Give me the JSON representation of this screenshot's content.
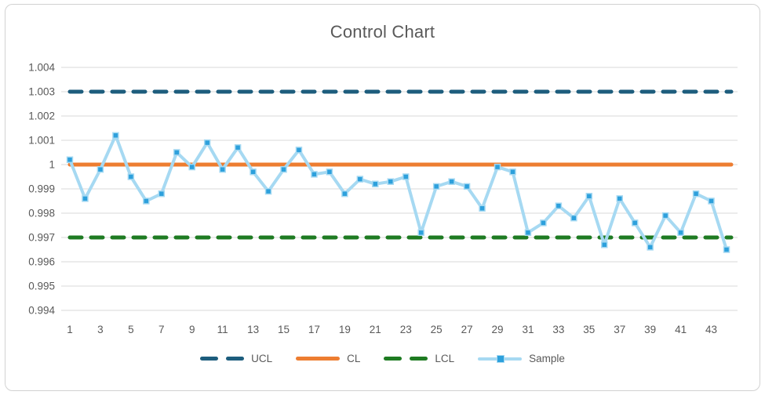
{
  "title": "Control Chart",
  "chart_data": {
    "type": "line",
    "title": "Control Chart",
    "grid": true,
    "legend_position": "bottom",
    "ylim": [
      0.994,
      1.004
    ],
    "ytick_step": 0.001,
    "ytick_labels": [
      "1.004",
      "1.003",
      "1.002",
      "1.001",
      "1",
      "0.999",
      "0.998",
      "0.997",
      "0.996",
      "0.995",
      "0.994"
    ],
    "ytick_values": [
      1.004,
      1.003,
      1.002,
      1.001,
      1.0,
      0.999,
      0.998,
      0.997,
      0.996,
      0.995,
      0.994
    ],
    "xtick_labels": [
      "1",
      "3",
      "5",
      "7",
      "9",
      "11",
      "13",
      "15",
      "17",
      "19",
      "21",
      "23",
      "25",
      "27",
      "29",
      "31",
      "33",
      "35",
      "37",
      "39",
      "41",
      "43"
    ],
    "x": [
      1,
      2,
      3,
      4,
      5,
      6,
      7,
      8,
      9,
      10,
      11,
      12,
      13,
      14,
      15,
      16,
      17,
      18,
      19,
      20,
      21,
      22,
      23,
      24,
      25,
      26,
      27,
      28,
      29,
      30,
      31,
      32,
      33,
      34,
      35,
      36,
      37,
      38,
      39,
      40,
      41,
      42,
      43,
      44
    ],
    "series": [
      {
        "name": "UCL",
        "kind": "hline",
        "value": 1.003,
        "color": "#1d5d7d",
        "dash": "dashed"
      },
      {
        "name": "CL",
        "kind": "hline",
        "value": 1.0,
        "color": "#ed7d31",
        "dash": "solid"
      },
      {
        "name": "LCL",
        "kind": "hline",
        "value": 0.997,
        "color": "#1e7b22",
        "dash": "dashed"
      },
      {
        "name": "Sample",
        "kind": "line-markers",
        "line_color": "#a6d9f2",
        "marker_color": "#2da0dc",
        "values": [
          1.0002,
          0.9986,
          0.9998,
          1.0012,
          0.9995,
          0.9985,
          0.9988,
          1.0005,
          0.9999,
          1.0009,
          0.9998,
          1.0007,
          0.9997,
          0.9989,
          0.9998,
          1.0006,
          0.9996,
          0.9997,
          0.9988,
          0.9994,
          0.9992,
          0.9993,
          0.9995,
          0.9972,
          0.9991,
          0.9993,
          0.9991,
          0.9982,
          0.9999,
          0.9997,
          0.9972,
          0.9976,
          0.9983,
          0.9978,
          0.9987,
          0.9967,
          0.9986,
          0.9976,
          0.9966,
          0.9979,
          0.9972,
          0.9988,
          0.9985,
          0.9965
        ]
      }
    ],
    "colors": {
      "grid": "#d9d9d9",
      "axis_text": "#595959",
      "title_text": "#595959",
      "frame_border": "#d2d2d2"
    }
  }
}
